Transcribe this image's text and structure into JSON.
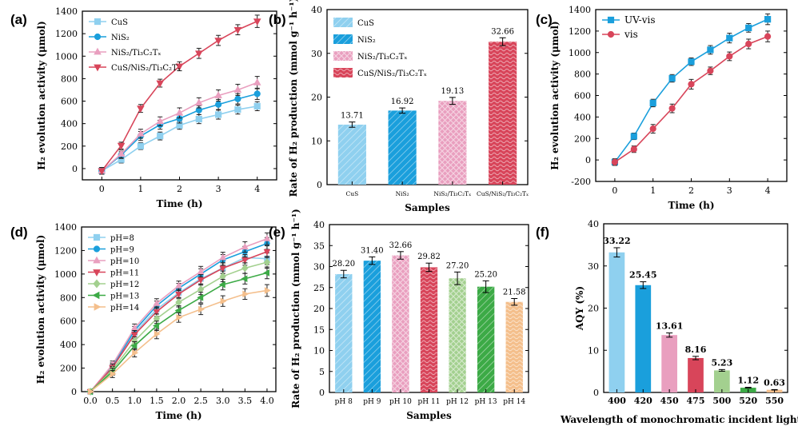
{
  "chart_data": [
    {
      "id": "a",
      "panel_label": "(a)",
      "type": "line",
      "xlabel": "Time (h)",
      "ylabel": "H₂ evolution activity (μmol)",
      "xlim": [
        -0.5,
        4.5
      ],
      "ylim": [
        -100,
        1400
      ],
      "xticks": [
        0,
        1,
        2,
        3,
        4
      ],
      "yticks": [
        0,
        200,
        400,
        600,
        800,
        1000,
        1200,
        1400
      ],
      "legend_position": "top-left",
      "series": [
        {
          "name": "CuS",
          "marker": "square",
          "color": "#8fd0ef",
          "x": [
            0,
            0.5,
            1,
            1.5,
            2,
            2.5,
            3,
            3.5,
            4
          ],
          "values": [
            -20,
            80,
            200,
            290,
            385,
            440,
            480,
            525,
            555
          ],
          "err": [
            30,
            30,
            30,
            35,
            35,
            40,
            40,
            40,
            40
          ]
        },
        {
          "name": "NiS₂",
          "marker": "circle",
          "color": "#1a9fdc",
          "x": [
            0,
            0.5,
            1,
            1.5,
            2,
            2.5,
            3,
            3.5,
            4
          ],
          "values": [
            -20,
            120,
            290,
            390,
            445,
            520,
            570,
            620,
            665
          ],
          "err": [
            30,
            30,
            40,
            40,
            40,
            40,
            45,
            45,
            50
          ]
        },
        {
          "name": "NiS₂/Ti₃C₂Tₓ",
          "marker": "triangle-up",
          "color": "#e99fbf",
          "x": [
            0,
            0.5,
            1,
            1.5,
            2,
            2.5,
            3,
            3.5,
            4
          ],
          "values": [
            -20,
            130,
            310,
            420,
            495,
            585,
            650,
            700,
            765
          ],
          "err": [
            30,
            35,
            40,
            40,
            45,
            45,
            50,
            50,
            55
          ]
        },
        {
          "name": "CuS/NiS₂/Ti₃C₂Tₓ",
          "marker": "triangle-down",
          "color": "#d8455a",
          "x": [
            0,
            0.5,
            1,
            1.5,
            2,
            2.5,
            3,
            3.5,
            4
          ],
          "values": [
            -20,
            205,
            535,
            760,
            910,
            1025,
            1140,
            1235,
            1310
          ],
          "err": [
            30,
            30,
            35,
            35,
            40,
            45,
            45,
            45,
            55
          ]
        }
      ]
    },
    {
      "id": "b",
      "panel_label": "(b)",
      "type": "bar",
      "xlabel": "Samples",
      "ylabel": "Rate of H₂ production (mmol g⁻¹ h⁻¹)",
      "ylim": [
        0,
        40
      ],
      "yticks": [
        0,
        10,
        20,
        30,
        40
      ],
      "categories": [
        "CuS",
        "NiS₂",
        "NiS₂/Ti₃C₂Tₓ",
        "CuS/NiS₂/Ti₃C₂Tₓ"
      ],
      "values": [
        13.71,
        16.92,
        19.13,
        32.66
      ],
      "value_labels": [
        "13.71",
        "16.92",
        "19.13",
        "32.66"
      ],
      "err": [
        0.6,
        0.6,
        0.8,
        0.9
      ],
      "colors": [
        "#8fd0ef",
        "#1a9fdc",
        "#e99fbf",
        "#d8455a"
      ],
      "legend": [
        "CuS",
        "NiS₂",
        "NiS₂/Ti₃C₂Tₓ",
        "CuS/NiS₂/Ti₃C₂Tₓ"
      ],
      "legend_position": "top-left"
    },
    {
      "id": "c",
      "panel_label": "(c)",
      "type": "line",
      "xlabel": "Time (h)",
      "ylabel": "H₂ evolution activity (μmol)",
      "xlim": [
        -0.5,
        4.5
      ],
      "ylim": [
        -200,
        1400
      ],
      "xticks": [
        0,
        1,
        2,
        3,
        4
      ],
      "yticks": [
        -200,
        0,
        200,
        400,
        600,
        800,
        1000,
        1200,
        1400
      ],
      "legend_position": "top-left",
      "series": [
        {
          "name": "UV-vis",
          "marker": "square",
          "color": "#1a9fdc",
          "x": [
            0,
            0.5,
            1,
            1.5,
            2,
            2.5,
            3,
            3.5,
            4
          ],
          "values": [
            -20,
            220,
            530,
            760,
            915,
            1025,
            1135,
            1230,
            1310
          ],
          "err": [
            30,
            30,
            35,
            35,
            35,
            40,
            45,
            40,
            50
          ]
        },
        {
          "name": "vis",
          "marker": "circle",
          "color": "#d8455a",
          "x": [
            0,
            0.5,
            1,
            1.5,
            2,
            2.5,
            3,
            3.5,
            4
          ],
          "values": [
            -20,
            100,
            290,
            480,
            705,
            830,
            965,
            1080,
            1150
          ],
          "err": [
            30,
            30,
            40,
            40,
            45,
            35,
            40,
            45,
            50
          ]
        }
      ]
    },
    {
      "id": "d",
      "panel_label": "(d)",
      "type": "line",
      "xlabel": "Time (h)",
      "ylabel": "H₂ evolution activity (μmol)",
      "xlim": [
        -0.2,
        4.2
      ],
      "ylim": [
        0,
        1400
      ],
      "xticks": [
        "0.0",
        "0.5",
        "1.0",
        "1.5",
        "2.0",
        "2.5",
        "3.0",
        "3.5",
        "4.0"
      ],
      "yticks": [
        0,
        200,
        400,
        600,
        800,
        1000,
        1200,
        1400
      ],
      "legend_position": "top-left",
      "series": [
        {
          "name": "pH=8",
          "marker": "square",
          "color": "#8fd0ef",
          "x": [
            0,
            0.5,
            1,
            1.5,
            2,
            2.5,
            3,
            3.5,
            4
          ],
          "values": [
            0,
            200,
            500,
            700,
            840,
            960,
            1050,
            1140,
            1130
          ],
          "err": [
            10,
            30,
            35,
            40,
            40,
            45,
            45,
            45,
            50
          ]
        },
        {
          "name": "pH=9",
          "marker": "circle",
          "color": "#1a9fdc",
          "x": [
            0,
            0.5,
            1,
            1.5,
            2,
            2.5,
            3,
            3.5,
            4
          ],
          "values": [
            0,
            215,
            520,
            730,
            880,
            1000,
            1120,
            1190,
            1260
          ],
          "err": [
            10,
            30,
            35,
            40,
            40,
            45,
            45,
            45,
            50
          ]
        },
        {
          "name": "pH=10",
          "marker": "triangle-up",
          "color": "#e99fbf",
          "x": [
            0,
            0.5,
            1,
            1.5,
            2,
            2.5,
            3,
            3.5,
            4
          ],
          "values": [
            0,
            230,
            540,
            750,
            900,
            1020,
            1140,
            1230,
            1300
          ],
          "err": [
            10,
            30,
            35,
            40,
            40,
            45,
            45,
            45,
            50
          ]
        },
        {
          "name": "pH=11",
          "marker": "triangle-down",
          "color": "#d8455a",
          "x": [
            0,
            0.5,
            1,
            1.5,
            2,
            2.5,
            3,
            3.5,
            4
          ],
          "values": [
            0,
            205,
            485,
            680,
            830,
            950,
            1050,
            1120,
            1190
          ],
          "err": [
            10,
            30,
            35,
            40,
            40,
            45,
            45,
            45,
            50
          ]
        },
        {
          "name": "pH=12",
          "marker": "diamond",
          "color": "#a3d08f",
          "x": [
            0,
            0.5,
            1,
            1.5,
            2,
            2.5,
            3,
            3.5,
            4
          ],
          "values": [
            0,
            185,
            430,
            620,
            760,
            870,
            980,
            1050,
            1100
          ],
          "err": [
            10,
            30,
            35,
            40,
            40,
            45,
            45,
            45,
            50
          ]
        },
        {
          "name": "pH=13",
          "marker": "triangle-left",
          "color": "#3caa46",
          "x": [
            0,
            0.5,
            1,
            1.5,
            2,
            2.5,
            3,
            3.5,
            4
          ],
          "values": [
            0,
            170,
            390,
            560,
            690,
            800,
            910,
            960,
            1010
          ],
          "err": [
            10,
            30,
            35,
            40,
            40,
            45,
            45,
            45,
            50
          ]
        },
        {
          "name": "pH=14",
          "marker": "triangle-right",
          "color": "#f4bf8c",
          "x": [
            0,
            0.5,
            1,
            1.5,
            2,
            2.5,
            3,
            3.5,
            4
          ],
          "values": [
            0,
            150,
            330,
            490,
            630,
            700,
            770,
            830,
            860
          ],
          "err": [
            10,
            30,
            35,
            40,
            40,
            45,
            45,
            45,
            50
          ]
        }
      ]
    },
    {
      "id": "e",
      "panel_label": "(e)",
      "type": "bar",
      "xlabel": "Samples",
      "ylabel": "Rate of H₂ production (mmol g⁻¹ h⁻¹)",
      "ylim": [
        0,
        40
      ],
      "yticks": [
        0,
        5,
        10,
        15,
        20,
        25,
        30,
        35,
        40
      ],
      "categories": [
        "pH 8",
        "pH 9",
        "pH 10",
        "pH 11",
        "pH 12",
        "pH 13",
        "pH 14"
      ],
      "values": [
        28.2,
        31.4,
        32.66,
        29.82,
        27.2,
        25.2,
        21.58
      ],
      "value_labels": [
        "28.20",
        "31.40",
        "32.66",
        "29.82",
        "27.20",
        "25.20",
        "21.58"
      ],
      "err": [
        0.9,
        0.9,
        0.9,
        1.0,
        1.5,
        1.4,
        0.8
      ],
      "colors": [
        "#8fd0ef",
        "#1a9fdc",
        "#e99fbf",
        "#d8455a",
        "#a3d08f",
        "#3caa46",
        "#f4bf8c"
      ]
    },
    {
      "id": "f",
      "panel_label": "(f)",
      "type": "bar",
      "xlabel": "Wavelength of monochromatic incident light (nm)",
      "ylabel": "AQY (%)",
      "ylim": [
        0,
        40
      ],
      "yticks": [
        0,
        10,
        20,
        30,
        40
      ],
      "categories": [
        "400",
        "420",
        "450",
        "475",
        "500",
        "520",
        "550"
      ],
      "values": [
        33.22,
        25.45,
        13.61,
        8.16,
        5.23,
        1.12,
        0.63
      ],
      "value_labels": [
        "33.22",
        "25.45",
        "13.61",
        "8.16",
        "5.23",
        "1.12",
        "0.63"
      ],
      "err": [
        1.1,
        0.8,
        0.5,
        0.4,
        0.2,
        0.1,
        0.05
      ],
      "colors": [
        "#8fd0ef",
        "#1a9fdc",
        "#e99fbf",
        "#d8455a",
        "#a3d08f",
        "#3caa46",
        "#f4bf8c"
      ]
    }
  ]
}
